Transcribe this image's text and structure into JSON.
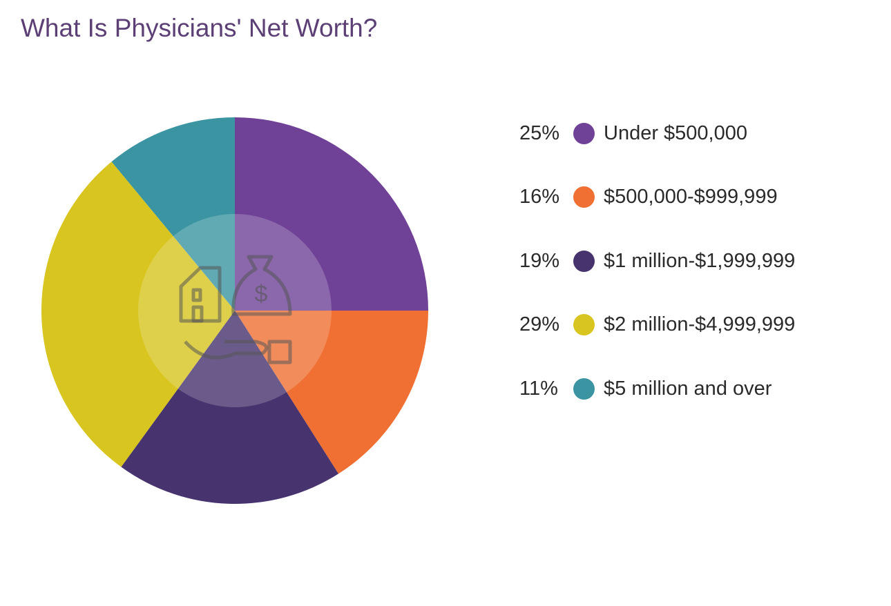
{
  "chart_data": {
    "type": "pie",
    "title": "What Is Physicians' Net Worth?",
    "start_angle": "top",
    "direction": "clockwise",
    "slices": [
      {
        "label": "Under $500,000",
        "value": 25,
        "value_label": "25%",
        "color": "#6f4197"
      },
      {
        "label": "$500,000-$999,999",
        "value": 16,
        "value_label": "16%",
        "color": "#f07033"
      },
      {
        "label": "$1 million-$1,999,999",
        "value": 19,
        "value_label": "19%",
        "color": "#47336d"
      },
      {
        "label": "$2 million-$4,999,999",
        "value": 29,
        "value_label": "29%",
        "color": "#d8c51f"
      },
      {
        "label": "$5 million and over",
        "value": 11,
        "value_label": "11%",
        "color": "#3a94a1"
      }
    ],
    "legend_position": "right",
    "center_icon": "money-bag-house-hand-icon"
  }
}
